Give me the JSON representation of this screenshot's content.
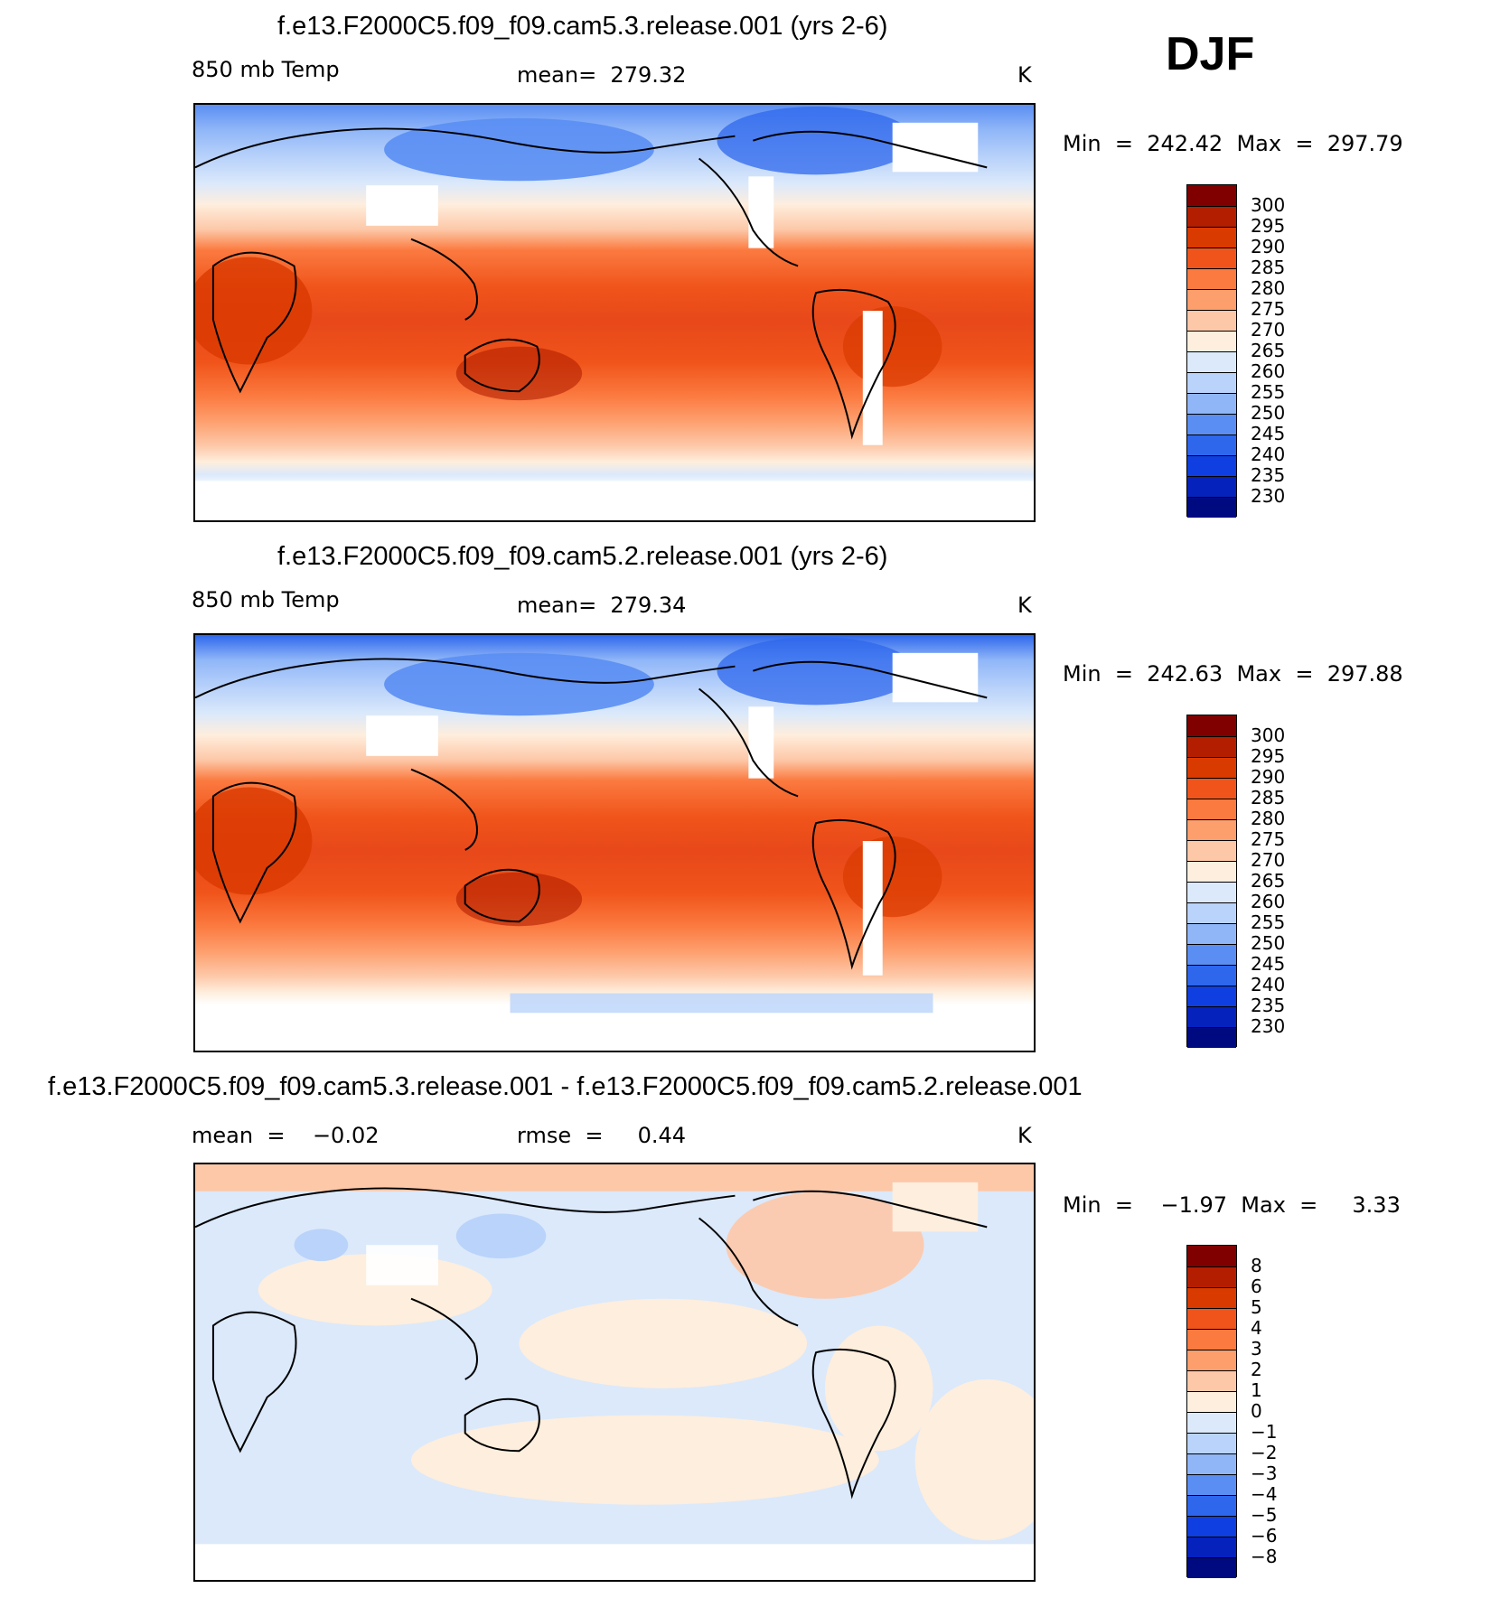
{
  "season": "DJF",
  "panels": [
    {
      "title": "f.e13.F2000C5.f09_f09.cam5.3.release.001 (yrs 2-6)",
      "left_label": "850 mb Temp",
      "center_label": "mean=  279.32",
      "units": "K",
      "minmax": "Min  =  242.42  Max  =  297.79",
      "colorbar_labels": [
        "300",
        "295",
        "290",
        "285",
        "280",
        "275",
        "270",
        "265",
        "260",
        "255",
        "250",
        "245",
        "240",
        "235",
        "230"
      ],
      "colors": [
        "#800000",
        "#b31e00",
        "#d93a00",
        "#f0541a",
        "#fb7a40",
        "#fd9e6d",
        "#fdc8a8",
        "#feeedd",
        "#dbe9fb",
        "#bad3fa",
        "#90b6f8",
        "#5a8ef3",
        "#2e67ec",
        "#0f3fe0",
        "#0522bd",
        "#000a80"
      ]
    },
    {
      "title": "f.e13.F2000C5.f09_f09.cam5.2.release.001 (yrs 2-6)",
      "left_label": "850 mb Temp",
      "center_label": "mean=  279.34",
      "units": "K",
      "minmax": "Min  =  242.63  Max  =  297.88",
      "colorbar_labels": [
        "300",
        "295",
        "290",
        "285",
        "280",
        "275",
        "270",
        "265",
        "260",
        "255",
        "250",
        "245",
        "240",
        "235",
        "230"
      ],
      "colors": [
        "#800000",
        "#b31e00",
        "#d93a00",
        "#f0541a",
        "#fb7a40",
        "#fd9e6d",
        "#fdc8a8",
        "#feeedd",
        "#dbe9fb",
        "#bad3fa",
        "#90b6f8",
        "#5a8ef3",
        "#2e67ec",
        "#0f3fe0",
        "#0522bd",
        "#000a80"
      ]
    },
    {
      "title": "f.e13.F2000C5.f09_f09.cam5.3.release.001 - f.e13.F2000C5.f09_f09.cam5.2.release.001",
      "left_label": "mean  =    −0.02",
      "center_label": "rmse  =     0.44",
      "units": "K",
      "minmax": "Min  =    −1.97  Max  =     3.33",
      "colorbar_labels": [
        "8",
        "6",
        "5",
        "4",
        "3",
        "2",
        "1",
        "0",
        "−1",
        "−2",
        "−3",
        "−4",
        "−5",
        "−6",
        "−8"
      ],
      "colors": [
        "#800000",
        "#b31e00",
        "#d93a00",
        "#f0541a",
        "#fb7a40",
        "#fd9e6d",
        "#fdc8a8",
        "#feeedd",
        "#dbe9fb",
        "#bad3fa",
        "#90b6f8",
        "#5a8ef3",
        "#2e67ec",
        "#0f3fe0",
        "#0522bd",
        "#000a80"
      ]
    }
  ]
}
